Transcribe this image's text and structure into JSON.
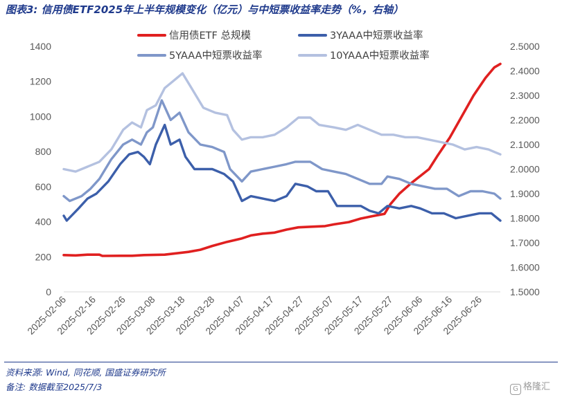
{
  "header": {
    "title": "图表3: 信用债ETF2025年上半年规模变化（亿元）与中短票收益率走势（%，右轴）"
  },
  "footer": {
    "source": "资料来源: Wind, 同花顺, 国盛证券研究所",
    "note": "备注: 数据截至2025/7/3",
    "watermark": "格隆汇"
  },
  "colors": {
    "scale": "#e02020",
    "y3": "#3c5faa",
    "y5": "#7f97c9",
    "y10": "#b4c1e0",
    "axis_text": "#595959",
    "title": "#1f3a8c"
  },
  "chart_data": {
    "type": "line",
    "title": "",
    "grid": false,
    "legend_position": "top",
    "x_tick_labels": [
      "2025-02-06",
      "2025-02-16",
      "2025-02-26",
      "2025-03-08",
      "2025-03-18",
      "2025-03-28",
      "2025-04-07",
      "2025-04-17",
      "2025-04-27",
      "2025-05-07",
      "2025-05-17",
      "2025-05-27",
      "2025-06-06",
      "2025-06-16",
      "2025-06-26"
    ],
    "x_range": [
      "2025-02-06",
      "2025-07-03"
    ],
    "y_left": {
      "range": [
        0,
        1400
      ],
      "ticks": [
        0,
        200,
        400,
        600,
        800,
        1000,
        1200,
        1400
      ],
      "label": ""
    },
    "y_right": {
      "range": [
        1.5,
        2.5
      ],
      "ticks": [
        "1.5000",
        "1.6000",
        "1.7000",
        "1.8000",
        "1.9000",
        "2.0000",
        "2.1000",
        "2.2000",
        "2.3000",
        "2.4000",
        "2.5000"
      ],
      "label": ""
    },
    "series": [
      {
        "name": "信用债ETF 总规模",
        "axis": "left",
        "color_key": "scale",
        "points": [
          [
            "2025-02-06",
            210
          ],
          [
            "2025-02-10",
            208
          ],
          [
            "2025-02-14",
            212
          ],
          [
            "2025-02-18",
            212
          ],
          [
            "2025-02-19",
            205
          ],
          [
            "2025-02-25",
            206
          ],
          [
            "2025-03-01",
            206
          ],
          [
            "2025-03-05",
            210
          ],
          [
            "2025-03-12",
            212
          ],
          [
            "2025-03-15",
            218
          ],
          [
            "2025-03-20",
            228
          ],
          [
            "2025-03-24",
            240
          ],
          [
            "2025-03-28",
            262
          ],
          [
            "2025-04-02",
            285
          ],
          [
            "2025-04-07",
            305
          ],
          [
            "2025-04-10",
            322
          ],
          [
            "2025-04-14",
            332
          ],
          [
            "2025-04-18",
            338
          ],
          [
            "2025-04-22",
            355
          ],
          [
            "2025-04-26",
            368
          ],
          [
            "2025-05-01",
            372
          ],
          [
            "2025-05-05",
            375
          ],
          [
            "2025-05-08",
            385
          ],
          [
            "2025-05-13",
            398
          ],
          [
            "2025-05-17",
            418
          ],
          [
            "2025-05-21",
            432
          ],
          [
            "2025-05-25",
            445
          ],
          [
            "2025-05-27",
            500
          ],
          [
            "2025-05-30",
            560
          ],
          [
            "2025-06-03",
            620
          ],
          [
            "2025-06-06",
            660
          ],
          [
            "2025-06-09",
            700
          ],
          [
            "2025-06-12",
            780
          ],
          [
            "2025-06-16",
            880
          ],
          [
            "2025-06-20",
            1000
          ],
          [
            "2025-06-24",
            1120
          ],
          [
            "2025-06-28",
            1220
          ],
          [
            "2025-07-01",
            1280
          ],
          [
            "2025-07-03",
            1300
          ]
        ]
      },
      {
        "name": "3YAAA中短票收益率",
        "axis": "right",
        "color_key": "y3",
        "points": [
          [
            "2025-02-06",
            1.81
          ],
          [
            "2025-02-07",
            1.79
          ],
          [
            "2025-02-11",
            1.84
          ],
          [
            "2025-02-14",
            1.88
          ],
          [
            "2025-02-17",
            1.9
          ],
          [
            "2025-02-21",
            1.95
          ],
          [
            "2025-02-25",
            2.02
          ],
          [
            "2025-02-28",
            2.06
          ],
          [
            "2025-03-03",
            2.07
          ],
          [
            "2025-03-05",
            2.05
          ],
          [
            "2025-03-07",
            2.02
          ],
          [
            "2025-03-09",
            2.1
          ],
          [
            "2025-03-12",
            2.18
          ],
          [
            "2025-03-14",
            2.1
          ],
          [
            "2025-03-17",
            2.12
          ],
          [
            "2025-03-19",
            2.05
          ],
          [
            "2025-03-22",
            2.0
          ],
          [
            "2025-03-28",
            2.0
          ],
          [
            "2025-04-01",
            1.98
          ],
          [
            "2025-04-04",
            1.95
          ],
          [
            "2025-04-07",
            1.87
          ],
          [
            "2025-04-10",
            1.89
          ],
          [
            "2025-04-14",
            1.88
          ],
          [
            "2025-04-18",
            1.87
          ],
          [
            "2025-04-22",
            1.89
          ],
          [
            "2025-04-25",
            1.94
          ],
          [
            "2025-04-29",
            1.93
          ],
          [
            "2025-05-02",
            1.91
          ],
          [
            "2025-05-06",
            1.91
          ],
          [
            "2025-05-09",
            1.85
          ],
          [
            "2025-05-13",
            1.85
          ],
          [
            "2025-05-17",
            1.85
          ],
          [
            "2025-05-20",
            1.83
          ],
          [
            "2025-05-23",
            1.82
          ],
          [
            "2025-05-26",
            1.85
          ],
          [
            "2025-05-30",
            1.84
          ],
          [
            "2025-06-03",
            1.85
          ],
          [
            "2025-06-06",
            1.84
          ],
          [
            "2025-06-10",
            1.82
          ],
          [
            "2025-06-14",
            1.82
          ],
          [
            "2025-06-18",
            1.8
          ],
          [
            "2025-06-22",
            1.81
          ],
          [
            "2025-06-26",
            1.82
          ],
          [
            "2025-06-30",
            1.82
          ],
          [
            "2025-07-03",
            1.79
          ]
        ]
      },
      {
        "name": "5YAAA中短票收益率",
        "axis": "right",
        "color_key": "y5",
        "points": [
          [
            "2025-02-06",
            1.89
          ],
          [
            "2025-02-08",
            1.87
          ],
          [
            "2025-02-12",
            1.89
          ],
          [
            "2025-02-15",
            1.92
          ],
          [
            "2025-02-18",
            1.96
          ],
          [
            "2025-02-22",
            2.04
          ],
          [
            "2025-02-26",
            2.1
          ],
          [
            "2025-03-01",
            2.12
          ],
          [
            "2025-03-04",
            2.1
          ],
          [
            "2025-03-06",
            2.15
          ],
          [
            "2025-03-08",
            2.17
          ],
          [
            "2025-03-11",
            2.28
          ],
          [
            "2025-03-14",
            2.2
          ],
          [
            "2025-03-17",
            2.23
          ],
          [
            "2025-03-20",
            2.15
          ],
          [
            "2025-03-24",
            2.1
          ],
          [
            "2025-03-28",
            2.09
          ],
          [
            "2025-04-01",
            2.07
          ],
          [
            "2025-04-03",
            2.0
          ],
          [
            "2025-04-07",
            1.95
          ],
          [
            "2025-04-10",
            1.99
          ],
          [
            "2025-04-14",
            2.0
          ],
          [
            "2025-04-18",
            2.01
          ],
          [
            "2025-04-22",
            2.02
          ],
          [
            "2025-04-25",
            2.03
          ],
          [
            "2025-04-30",
            2.03
          ],
          [
            "2025-05-04",
            2.0
          ],
          [
            "2025-05-08",
            1.99
          ],
          [
            "2025-05-12",
            1.98
          ],
          [
            "2025-05-16",
            1.96
          ],
          [
            "2025-05-20",
            1.94
          ],
          [
            "2025-05-24",
            1.94
          ],
          [
            "2025-05-26",
            1.97
          ],
          [
            "2025-05-30",
            1.96
          ],
          [
            "2025-06-03",
            1.94
          ],
          [
            "2025-06-07",
            1.93
          ],
          [
            "2025-06-11",
            1.92
          ],
          [
            "2025-06-15",
            1.92
          ],
          [
            "2025-06-19",
            1.89
          ],
          [
            "2025-06-23",
            1.91
          ],
          [
            "2025-06-27",
            1.91
          ],
          [
            "2025-07-01",
            1.9
          ],
          [
            "2025-07-03",
            1.88
          ]
        ]
      },
      {
        "name": "10YAAA中短票收益率",
        "axis": "right",
        "color_key": "y10",
        "points": [
          [
            "2025-02-06",
            2.0
          ],
          [
            "2025-02-10",
            1.99
          ],
          [
            "2025-02-14",
            2.01
          ],
          [
            "2025-02-18",
            2.03
          ],
          [
            "2025-02-22",
            2.08
          ],
          [
            "2025-02-26",
            2.16
          ],
          [
            "2025-03-01",
            2.19
          ],
          [
            "2025-03-04",
            2.17
          ],
          [
            "2025-03-06",
            2.24
          ],
          [
            "2025-03-09",
            2.26
          ],
          [
            "2025-03-12",
            2.33
          ],
          [
            "2025-03-15",
            2.36
          ],
          [
            "2025-03-18",
            2.39
          ],
          [
            "2025-03-21",
            2.33
          ],
          [
            "2025-03-25",
            2.25
          ],
          [
            "2025-03-29",
            2.23
          ],
          [
            "2025-04-02",
            2.22
          ],
          [
            "2025-04-04",
            2.16
          ],
          [
            "2025-04-07",
            2.12
          ],
          [
            "2025-04-10",
            2.13
          ],
          [
            "2025-04-14",
            2.13
          ],
          [
            "2025-04-18",
            2.14
          ],
          [
            "2025-04-22",
            2.17
          ],
          [
            "2025-04-26",
            2.21
          ],
          [
            "2025-04-30",
            2.21
          ],
          [
            "2025-05-03",
            2.18
          ],
          [
            "2025-05-08",
            2.17
          ],
          [
            "2025-05-12",
            2.16
          ],
          [
            "2025-05-16",
            2.18
          ],
          [
            "2025-05-20",
            2.16
          ],
          [
            "2025-05-24",
            2.14
          ],
          [
            "2025-05-28",
            2.14
          ],
          [
            "2025-06-01",
            2.13
          ],
          [
            "2025-06-05",
            2.13
          ],
          [
            "2025-06-09",
            2.12
          ],
          [
            "2025-06-13",
            2.11
          ],
          [
            "2025-06-17",
            2.1
          ],
          [
            "2025-06-21",
            2.08
          ],
          [
            "2025-06-25",
            2.09
          ],
          [
            "2025-06-29",
            2.08
          ],
          [
            "2025-07-01",
            2.07
          ],
          [
            "2025-07-03",
            2.06
          ]
        ]
      }
    ]
  }
}
